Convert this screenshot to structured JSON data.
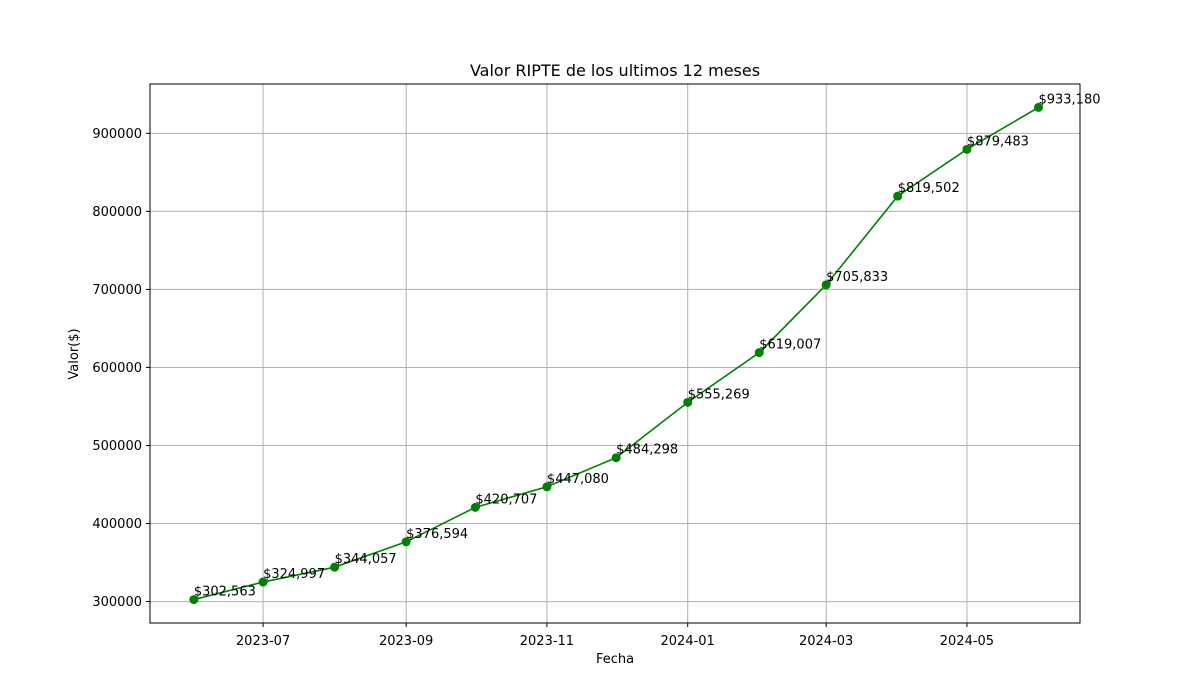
{
  "chart_data": {
    "type": "line",
    "title": "Valor RIPTE de los ultimos 12 meses",
    "xlabel": "Fecha",
    "ylabel": "Valor($)",
    "grid": true,
    "line_color": "#008000",
    "x_tick_labels": [
      "2023-07",
      "2023-09",
      "2023-11",
      "2024-01",
      "2024-03",
      "2024-05"
    ],
    "x_tick_dates": [
      "2023-07-01",
      "2023-09-01",
      "2023-11-01",
      "2024-01-01",
      "2024-03-01",
      "2024-05-01"
    ],
    "y_tick_labels": [
      "300000",
      "400000",
      "500000",
      "600000",
      "700000",
      "800000",
      "900000"
    ],
    "y_tick_values": [
      300000,
      400000,
      500000,
      600000,
      700000,
      800000,
      900000
    ],
    "xlim": [
      "2023-05-13",
      "2024-06-19"
    ],
    "ylim": [
      272532,
      963211
    ],
    "series": [
      {
        "x": [
          "2023-06-01",
          "2023-07-01",
          "2023-08-01",
          "2023-09-01",
          "2023-10-01",
          "2023-11-01",
          "2023-12-01",
          "2024-01-01",
          "2024-02-01",
          "2024-03-01",
          "2024-04-01",
          "2024-05-01",
          "2024-06-01"
        ],
        "values": [
          302563,
          324997,
          344057,
          376594,
          420707,
          447080,
          484298,
          555269,
          619007,
          705833,
          819502,
          879483,
          933180
        ],
        "data_labels": [
          "$302,563",
          "$324,997",
          "$344,057",
          "$376,594",
          "$420,707",
          "$447,080",
          "$484,298",
          "$555,269",
          "$619,007",
          "$705,833",
          "$819,502",
          "$879,483",
          "$933,180"
        ]
      }
    ]
  }
}
